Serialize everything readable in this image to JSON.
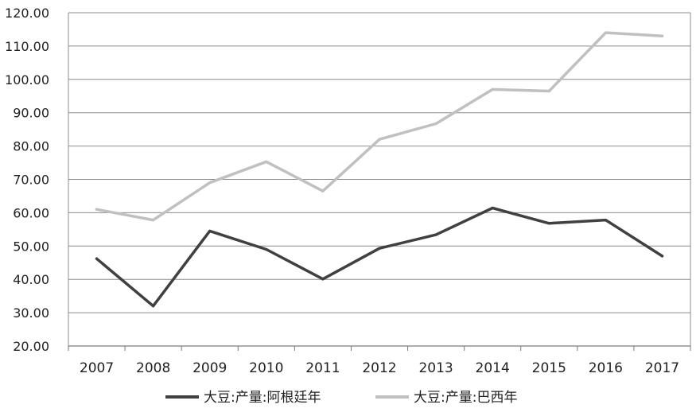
{
  "chart_data": {
    "type": "line",
    "title": "",
    "xlabel": "",
    "ylabel": "",
    "x": [
      "2007",
      "2008",
      "2009",
      "2010",
      "2011",
      "2012",
      "2013",
      "2014",
      "2015",
      "2016",
      "2017"
    ],
    "ylim": [
      20,
      120
    ],
    "yticks": [
      "20.00",
      "30.00",
      "40.00",
      "50.00",
      "60.00",
      "70.00",
      "80.00",
      "90.00",
      "100.00",
      "110.00",
      "120.00"
    ],
    "grid": "horizontal",
    "legend_position": "bottom",
    "series": [
      {
        "name": "大豆:产量:阿根廷年",
        "color": "#404040",
        "values": [
          46.2,
          32.0,
          54.5,
          49.0,
          40.1,
          49.3,
          53.4,
          61.4,
          56.8,
          57.8,
          47.0
        ]
      },
      {
        "name": "大豆:产量:巴西年",
        "color": "#c0c0c0",
        "values": [
          61.0,
          57.8,
          69.0,
          75.3,
          66.5,
          82.0,
          86.7,
          97.0,
          96.5,
          114.0,
          113.0
        ]
      }
    ]
  }
}
